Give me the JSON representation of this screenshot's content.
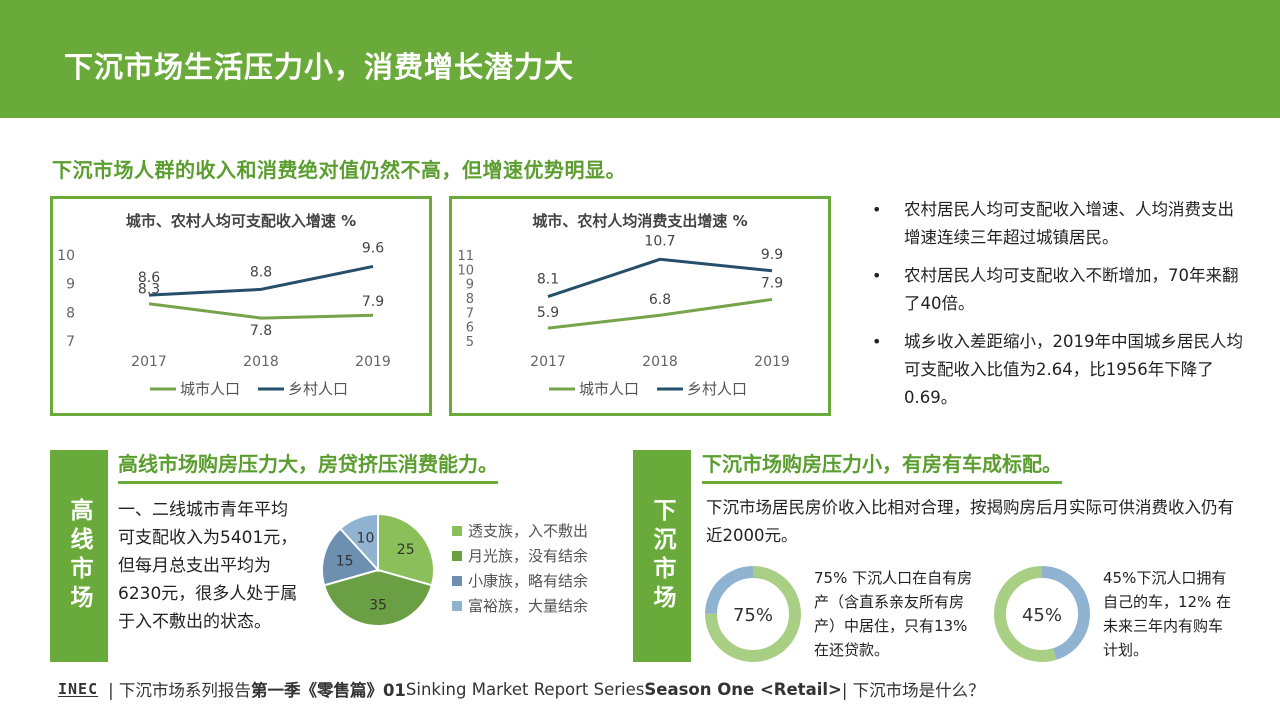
{
  "header": {
    "title": "下沉市场生活压力小，消费增长潜力大"
  },
  "subheading": "下沉市场人群的收入和消费绝对值仍然不高，但增速优势明显。",
  "chart_data": [
    {
      "type": "line",
      "title": "城市、农村人均可支配收入增速 %",
      "categories": [
        "2017",
        "2018",
        "2019"
      ],
      "ylim": [
        7,
        10
      ],
      "yticks": [
        7,
        8,
        9,
        10
      ],
      "series": [
        {
          "name": "城市人口",
          "values": [
            8.3,
            7.8,
            7.9
          ],
          "color": "#77a34a",
          "labels": [
            "8.3",
            "7.8",
            "7.9"
          ]
        },
        {
          "name": "乡村人口",
          "values": [
            8.6,
            8.8,
            9.6
          ],
          "color": "#264f6a",
          "labels": [
            "8.6",
            "8.8",
            "9.6"
          ]
        }
      ],
      "legend": "bottom"
    },
    {
      "type": "line",
      "title": "城市、农村人均消费支出增速 %",
      "categories": [
        "2017",
        "2018",
        "2019"
      ],
      "ylim": [
        5,
        11
      ],
      "yticks": [
        5,
        6,
        7,
        8,
        9,
        10,
        11
      ],
      "series": [
        {
          "name": "城市人口",
          "values": [
            5.9,
            6.8,
            7.9
          ],
          "color": "#77a34a",
          "labels": [
            "5.9",
            "6.8",
            "7.9"
          ]
        },
        {
          "name": "乡村人口",
          "values": [
            8.1,
            10.7,
            9.9
          ],
          "color": "#264f6a",
          "labels": [
            "8.1",
            "10.7",
            "9.9"
          ]
        }
      ],
      "legend": "bottom"
    },
    {
      "type": "pie",
      "labels": [
        "透支族，入不敷出",
        "月光族，没有结余",
        "小康族，略有结余",
        "富裕族，大量结余"
      ],
      "values": [
        25,
        35,
        15,
        10
      ],
      "colors": [
        "#8bbf5a",
        "#6aa043",
        "#6d8fb0",
        "#8fb3d1"
      ]
    },
    {
      "type": "pie",
      "values": [
        75,
        25
      ],
      "label": "75%",
      "colors": [
        "#a9cf85",
        "#8fb3d1"
      ]
    },
    {
      "type": "pie",
      "values": [
        45,
        55
      ],
      "label": "45%",
      "colors": [
        "#8fb3d1",
        "#a9cf85"
      ]
    }
  ],
  "bullets": [
    "农村居民人均可支配收入增速、人均消费支出增速连续三年超过城镇居民。",
    "农村居民人均可支配收入不断增加，70年来翻了40倍。",
    "城乡收入差距缩小，2019年中国城乡居民人均可支配收入比值为2.64，比1956年下降了0.69。"
  ],
  "left_section": {
    "tag": "高线市场",
    "heading": "高线市场购房压力大，房贷挤压消费能力。",
    "text": "一、二线城市青年平均可支配收入为5401元，但每月总支出平均为6230元，很多人处于属于入不敷出的状态。"
  },
  "right_section": {
    "tag": "下沉市场",
    "heading": "下沉市场购房压力小，有房有车成标配。",
    "text": "下沉市场居民房价收入比相对合理，按揭购房后月实际可供消费收入仍有近2000元。",
    "donut1_text": "75% 下沉人口在自有房产（含直系亲友所有房产）中居住，只有13% 在还贷款。",
    "donut2_text": "45%下沉人口拥有自己的车，12% 在未来三年内有购车计划。"
  },
  "footer": {
    "logo": "INEC",
    "part1": "| 下沉市场系列报告 ",
    "part2": "第一季《零售篇》01",
    "part3": " Sinking Market Report Series ",
    "part4": "Season One <Retail>",
    "part5": "  |  下沉市场是什么？"
  }
}
